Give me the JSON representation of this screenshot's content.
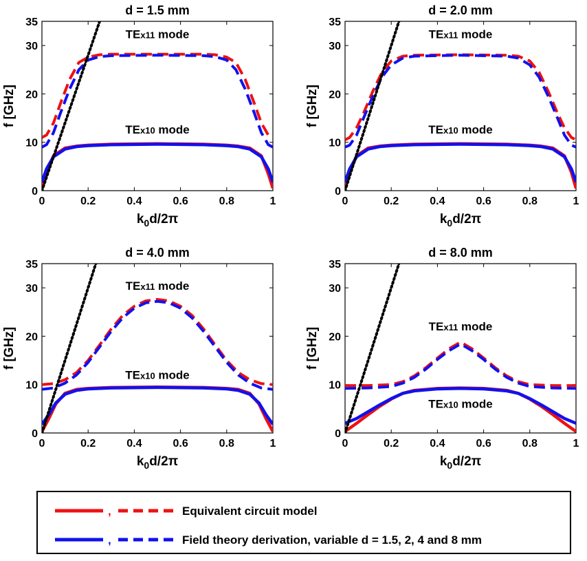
{
  "colors": {
    "red": "#ee1111",
    "blue": "#1111ee",
    "black": "#000000"
  },
  "panels": [
    {
      "title": "d = 1.5 mm",
      "light_line_slope": 140,
      "labels": {
        "te11": "TEx11 mode",
        "te10": "TEx10 mode"
      },
      "te11_label_pos": {
        "x": 0.5,
        "y": 31.5
      },
      "te10_label_pos": {
        "x": 0.5,
        "y": 11.8
      },
      "series": {
        "red_solid": {
          "x": [
            0,
            0.02,
            0.05,
            0.1,
            0.15,
            0.2,
            0.3,
            0.5,
            0.7,
            0.8,
            0.85,
            0.9,
            0.95,
            0.98,
            1.0
          ],
          "y": [
            0.5,
            3.5,
            7.2,
            8.8,
            9.2,
            9.4,
            9.6,
            9.7,
            9.6,
            9.4,
            9.2,
            8.8,
            7.2,
            3.5,
            0.5
          ]
        },
        "blue_solid": {
          "x": [
            0,
            0.02,
            0.05,
            0.1,
            0.15,
            0.2,
            0.3,
            0.5,
            0.7,
            0.8,
            0.85,
            0.9,
            0.95,
            0.98,
            1.0
          ],
          "y": [
            1.8,
            4.5,
            7.0,
            8.6,
            9.1,
            9.3,
            9.5,
            9.6,
            9.5,
            9.3,
            9.1,
            8.6,
            7.0,
            4.5,
            1.8
          ]
        },
        "red_dashed": {
          "x": [
            0,
            0.02,
            0.05,
            0.08,
            0.12,
            0.16,
            0.2,
            0.25,
            0.3,
            0.5,
            0.7,
            0.75,
            0.8,
            0.84,
            0.88,
            0.92,
            0.95,
            0.98,
            1.0
          ],
          "y": [
            11,
            11.5,
            14,
            18,
            23,
            26.5,
            27.6,
            28.1,
            28.2,
            28.2,
            28.2,
            28.1,
            27.6,
            26.5,
            23,
            18,
            14,
            11.5,
            11
          ]
        },
        "blue_dashed": {
          "x": [
            0,
            0.02,
            0.05,
            0.08,
            0.12,
            0.16,
            0.2,
            0.25,
            0.3,
            0.5,
            0.7,
            0.75,
            0.8,
            0.84,
            0.88,
            0.92,
            0.95,
            0.98,
            1.0
          ],
          "y": [
            9,
            9.5,
            12,
            16,
            21,
            25,
            27,
            27.7,
            27.9,
            28.0,
            27.9,
            27.7,
            27,
            25,
            21,
            16,
            12,
            9.5,
            9
          ]
        }
      }
    },
    {
      "title": "d = 2.0 mm",
      "light_line_slope": 150,
      "labels": {
        "te11": "TEx11 mode",
        "te10": "TEx10 mode"
      },
      "te11_label_pos": {
        "x": 0.5,
        "y": 31.5
      },
      "te10_label_pos": {
        "x": 0.5,
        "y": 11.8
      },
      "series": {
        "red_solid": {
          "x": [
            0,
            0.02,
            0.05,
            0.1,
            0.15,
            0.2,
            0.3,
            0.5,
            0.7,
            0.8,
            0.85,
            0.9,
            0.95,
            0.98,
            1.0
          ],
          "y": [
            0.5,
            3.8,
            7.2,
            8.8,
            9.2,
            9.4,
            9.6,
            9.7,
            9.6,
            9.4,
            9.2,
            8.8,
            7.2,
            3.8,
            0.5
          ]
        },
        "blue_solid": {
          "x": [
            0,
            0.02,
            0.05,
            0.1,
            0.15,
            0.2,
            0.3,
            0.5,
            0.7,
            0.8,
            0.85,
            0.9,
            0.95,
            0.98,
            1.0
          ],
          "y": [
            1.8,
            4.5,
            7.0,
            8.6,
            9.1,
            9.3,
            9.5,
            9.6,
            9.5,
            9.3,
            9.1,
            8.6,
            7.0,
            4.5,
            1.8
          ]
        },
        "red_dashed": {
          "x": [
            0,
            0.02,
            0.05,
            0.08,
            0.12,
            0.16,
            0.2,
            0.25,
            0.3,
            0.5,
            0.7,
            0.75,
            0.8,
            0.84,
            0.88,
            0.92,
            0.95,
            0.98,
            1.0
          ],
          "y": [
            10.5,
            11,
            13,
            16,
            20.5,
            24.5,
            26.8,
            27.8,
            28.0,
            28.1,
            28.0,
            27.8,
            26.8,
            24.5,
            20.5,
            16,
            13,
            11,
            10.5
          ]
        },
        "blue_dashed": {
          "x": [
            0,
            0.02,
            0.05,
            0.08,
            0.12,
            0.16,
            0.2,
            0.25,
            0.3,
            0.5,
            0.7,
            0.75,
            0.8,
            0.84,
            0.88,
            0.92,
            0.95,
            0.98,
            1.0
          ],
          "y": [
            9,
            9.4,
            11.5,
            15,
            19.5,
            23.5,
            26,
            27.4,
            27.8,
            28.0,
            27.8,
            27.4,
            26,
            23.5,
            19.5,
            15,
            11.5,
            9.4,
            9
          ]
        }
      }
    },
    {
      "title": "d = 4.0 mm",
      "light_line_slope": 150,
      "labels": {
        "te11": "TEx11 mode",
        "te10": "TEx10 mode"
      },
      "te11_label_pos": {
        "x": 0.5,
        "y": 29.6
      },
      "te10_label_pos": {
        "x": 0.5,
        "y": 11.2
      },
      "series": {
        "red_solid": {
          "x": [
            0,
            0.03,
            0.06,
            0.1,
            0.15,
            0.2,
            0.3,
            0.5,
            0.7,
            0.8,
            0.85,
            0.9,
            0.94,
            0.97,
            1.0
          ],
          "y": [
            0.3,
            3.0,
            6.0,
            8.2,
            9.0,
            9.2,
            9.4,
            9.5,
            9.4,
            9.2,
            9.0,
            8.2,
            6.0,
            3.0,
            0.3
          ]
        },
        "blue_solid": {
          "x": [
            0,
            0.03,
            0.06,
            0.1,
            0.15,
            0.2,
            0.3,
            0.5,
            0.7,
            0.8,
            0.85,
            0.9,
            0.94,
            0.97,
            1.0
          ],
          "y": [
            1.8,
            3.8,
            6.2,
            8.0,
            8.8,
            9.1,
            9.3,
            9.4,
            9.3,
            9.1,
            8.8,
            8.0,
            6.2,
            3.8,
            1.8
          ]
        },
        "red_dashed": {
          "x": [
            0,
            0.05,
            0.1,
            0.15,
            0.2,
            0.25,
            0.3,
            0.35,
            0.4,
            0.45,
            0.5,
            0.55,
            0.6,
            0.65,
            0.7,
            0.75,
            0.8,
            0.85,
            0.9,
            0.95,
            1.0
          ],
          "y": [
            10,
            10.2,
            11,
            12.5,
            15,
            18.2,
            21.5,
            24.3,
            26.2,
            27.3,
            27.6,
            27.3,
            26.2,
            24.3,
            21.5,
            18.2,
            15,
            12.5,
            11,
            10.2,
            10
          ]
        },
        "blue_dashed": {
          "x": [
            0,
            0.05,
            0.1,
            0.15,
            0.2,
            0.25,
            0.3,
            0.35,
            0.4,
            0.45,
            0.5,
            0.55,
            0.6,
            0.65,
            0.7,
            0.75,
            0.8,
            0.85,
            0.9,
            0.95,
            1.0
          ],
          "y": [
            9,
            9.3,
            10.3,
            12,
            14.6,
            17.8,
            21,
            23.8,
            25.8,
            26.9,
            27.2,
            26.9,
            25.8,
            23.8,
            21,
            17.8,
            14.6,
            12,
            10.3,
            9.3,
            9
          ]
        }
      }
    },
    {
      "title": "d = 8.0 mm",
      "light_line_slope": 150,
      "labels": {
        "te11": "TEx11 mode",
        "te10": "TEx10 mode"
      },
      "te11_label_pos": {
        "x": 0.5,
        "y": 21.2
      },
      "te10_label_pos": {
        "x": 0.5,
        "y": 5.2
      },
      "series": {
        "red_solid": {
          "x": [
            0,
            0.05,
            0.1,
            0.15,
            0.2,
            0.25,
            0.3,
            0.4,
            0.5,
            0.6,
            0.7,
            0.75,
            0.8,
            0.85,
            0.9,
            0.95,
            1.0
          ],
          "y": [
            0.3,
            2.0,
            3.8,
            5.5,
            7.0,
            8.2,
            8.8,
            9.2,
            9.3,
            9.2,
            8.8,
            8.2,
            7.0,
            5.5,
            3.8,
            2.0,
            0.3
          ]
        },
        "blue_solid": {
          "x": [
            0,
            0.05,
            0.1,
            0.15,
            0.2,
            0.25,
            0.3,
            0.4,
            0.5,
            0.6,
            0.7,
            0.75,
            0.8,
            0.85,
            0.9,
            0.95,
            1.0
          ],
          "y": [
            2.0,
            3.0,
            4.4,
            5.8,
            7.1,
            8.2,
            8.7,
            9.1,
            9.2,
            9.1,
            8.7,
            8.2,
            7.1,
            5.8,
            4.4,
            3.0,
            2.0
          ]
        },
        "red_dashed": {
          "x": [
            0,
            0.1,
            0.2,
            0.25,
            0.3,
            0.35,
            0.4,
            0.45,
            0.5,
            0.55,
            0.6,
            0.65,
            0.7,
            0.75,
            0.8,
            0.9,
            1.0
          ],
          "y": [
            9.8,
            9.8,
            10.0,
            10.6,
            11.8,
            13.5,
            15.5,
            17.4,
            18.8,
            17.4,
            15.5,
            13.5,
            11.8,
            10.6,
            10.0,
            9.8,
            9.8
          ]
        },
        "blue_dashed": {
          "x": [
            0,
            0.1,
            0.2,
            0.25,
            0.3,
            0.35,
            0.4,
            0.45,
            0.5,
            0.55,
            0.6,
            0.65,
            0.7,
            0.75,
            0.8,
            0.9,
            1.0
          ],
          "y": [
            9.2,
            9.3,
            9.6,
            10.3,
            11.5,
            13.2,
            15.2,
            17.0,
            18.4,
            17.0,
            15.2,
            13.2,
            11.5,
            10.3,
            9.6,
            9.3,
            9.2
          ]
        }
      }
    }
  ],
  "chart_data": [
    {
      "type": "line",
      "title": "d = 1.5 mm",
      "xlabel": "k0d/2π",
      "ylabel": "f [GHz]",
      "xlim": [
        0,
        1
      ],
      "ylim": [
        0,
        35
      ],
      "xticks": [
        "0",
        "0.2",
        "0.4",
        "0.6",
        "0.8",
        "1"
      ],
      "yticks": [
        "0",
        "10",
        "20",
        "30",
        "35"
      ]
    },
    {
      "type": "line",
      "title": "d = 2.0 mm",
      "xlabel": "k0d/2π",
      "ylabel": "f [GHz]",
      "xlim": [
        0,
        1
      ],
      "ylim": [
        0,
        35
      ],
      "xticks": [
        "0",
        "0.2",
        "0.4",
        "0.6",
        "0.8",
        "1"
      ],
      "yticks": [
        "0",
        "10",
        "20",
        "30",
        "35"
      ]
    },
    {
      "type": "line",
      "title": "d = 4.0 mm",
      "xlabel": "k0d/2π",
      "ylabel": "f [GHz]",
      "xlim": [
        0,
        1
      ],
      "ylim": [
        0,
        35
      ],
      "xticks": [
        "0",
        "0.2",
        "0.4",
        "0.6",
        "0.8",
        "1"
      ],
      "yticks": [
        "0",
        "10",
        "20",
        "30",
        "35"
      ]
    },
    {
      "type": "line",
      "title": "d = 8.0 mm",
      "xlabel": "k0d/2π",
      "ylabel": "f [GHz]",
      "xlim": [
        0,
        1
      ],
      "ylim": [
        0,
        35
      ],
      "xticks": [
        "0",
        "0.2",
        "0.4",
        "0.6",
        "0.8",
        "1"
      ],
      "yticks": [
        "0",
        "10",
        "20",
        "30",
        "35"
      ]
    }
  ],
  "legend": {
    "sep": ",",
    "entry1": "Equivalent circuit model",
    "entry2": "Field theory derivation, variable d = 1.5, 2, 4 and 8 mm"
  }
}
